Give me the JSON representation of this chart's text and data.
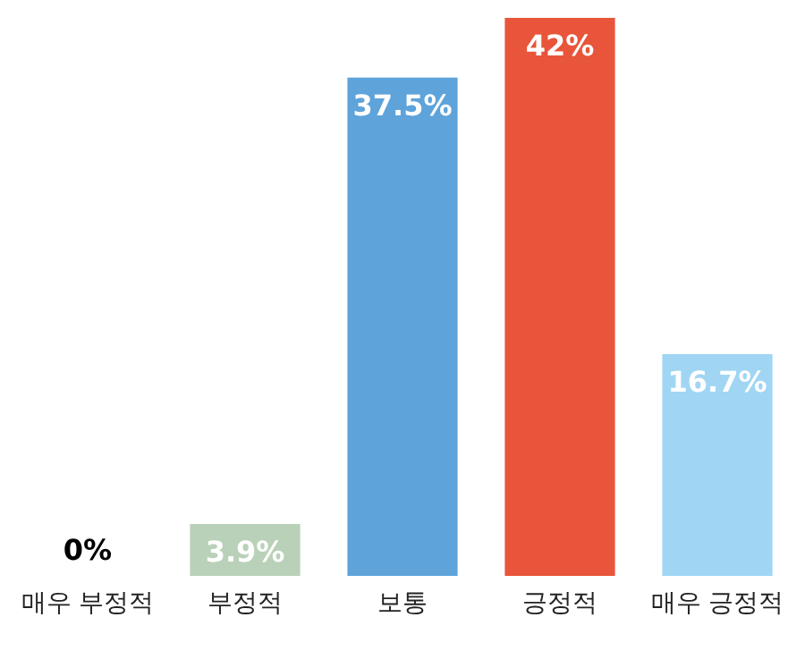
{
  "chart_data": {
    "type": "bar",
    "categories": [
      "매우 부정적",
      "부정적",
      "보통",
      "긍정적",
      "매우 긍정적"
    ],
    "values": [
      0,
      3.9,
      37.5,
      42,
      16.7
    ],
    "colors": [
      "#e8a3b4",
      "#b9d1b8",
      "#5ea3da",
      "#e8553a",
      "#a0d6f3"
    ],
    "value_labels": [
      "0%",
      "3.9%",
      "37.5%",
      "42%",
      "16.7%"
    ]
  }
}
